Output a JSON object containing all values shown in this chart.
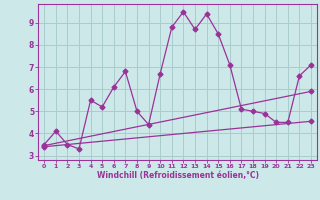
{
  "xlabel": "Windchill (Refroidissement éolien,°C)",
  "bg_color": "#cde8e8",
  "grid_color": "#aacccc",
  "line_color": "#993399",
  "xlim": [
    -0.5,
    23.5
  ],
  "ylim": [
    2.8,
    9.85
  ],
  "xticks": [
    0,
    1,
    2,
    3,
    4,
    5,
    6,
    7,
    8,
    9,
    10,
    11,
    12,
    13,
    14,
    15,
    16,
    17,
    18,
    19,
    20,
    21,
    22,
    23
  ],
  "yticks": [
    3,
    4,
    5,
    6,
    7,
    8,
    9
  ],
  "main_x": [
    0,
    1,
    2,
    3,
    4,
    5,
    6,
    7,
    8,
    9,
    10,
    11,
    12,
    13,
    14,
    15,
    16,
    17,
    18,
    19,
    20,
    21,
    22,
    23
  ],
  "main_y": [
    3.5,
    4.1,
    3.5,
    3.3,
    5.5,
    5.2,
    6.1,
    6.8,
    5.0,
    4.4,
    6.7,
    8.8,
    9.5,
    8.7,
    9.4,
    8.5,
    7.1,
    5.1,
    5.0,
    4.9,
    4.5,
    4.5,
    6.6,
    7.1
  ],
  "trend1_x": [
    0,
    23
  ],
  "trend1_y": [
    3.4,
    4.55
  ],
  "trend2_x": [
    0,
    23
  ],
  "trend2_y": [
    3.45,
    5.9
  ],
  "markersize": 2.5,
  "linewidth": 0.9
}
